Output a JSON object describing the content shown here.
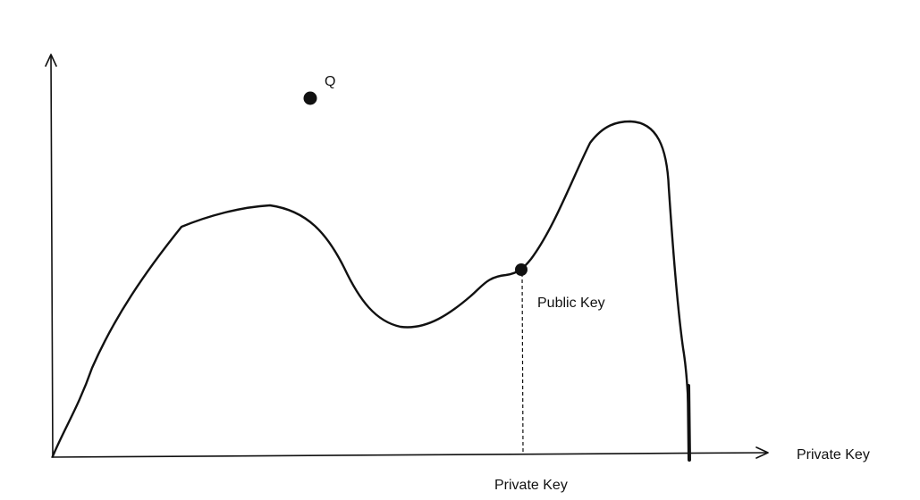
{
  "diagram": {
    "labels": {
      "point_q": "Q",
      "public_key": "Public Key",
      "x_axis": "Private Key",
      "private_key_point": "Private Key"
    },
    "colors": {
      "background": "#ffffff",
      "ink": "#111111"
    },
    "icons": {
      "axes": "axis-arrows-icon",
      "curve": "hand-drawn-curve",
      "point": "filled-dot-icon"
    }
  }
}
